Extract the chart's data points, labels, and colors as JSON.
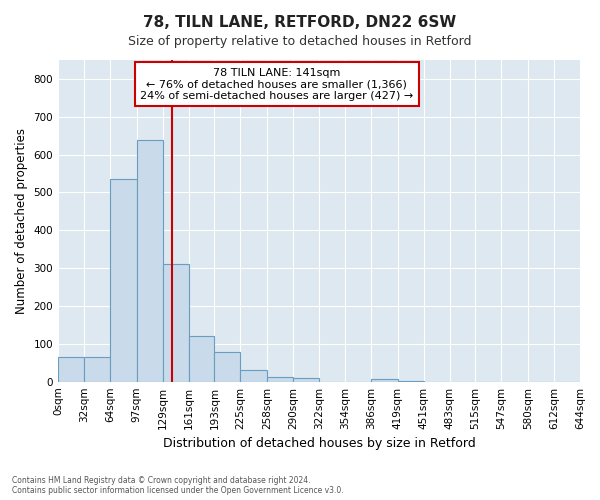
{
  "title1": "78, TILN LANE, RETFORD, DN22 6SW",
  "title2": "Size of property relative to detached houses in Retford",
  "xlabel": "Distribution of detached houses by size in Retford",
  "ylabel": "Number of detached properties",
  "bin_edges": [
    0,
    32,
    64,
    97,
    129,
    161,
    193,
    225,
    258,
    290,
    322,
    354,
    386,
    419,
    451,
    483,
    515,
    547,
    580,
    612,
    644
  ],
  "bar_heights": [
    65,
    65,
    535,
    638,
    312,
    120,
    78,
    30,
    13,
    10,
    0,
    0,
    8,
    3,
    0,
    0,
    0,
    0,
    0,
    0
  ],
  "bar_color": "#c9daea",
  "bar_edge_color": "#6a9ec0",
  "property_sqm": 141,
  "vline_color": "#cc0000",
  "annotation_text": "78 TILN LANE: 141sqm\n← 76% of detached houses are smaller (1,366)\n24% of semi-detached houses are larger (427) →",
  "annotation_box_facecolor": "#ffffff",
  "annotation_box_edgecolor": "#cc0000",
  "ylim": [
    0,
    850
  ],
  "yticks": [
    0,
    100,
    200,
    300,
    400,
    500,
    600,
    700,
    800
  ],
  "fig_facecolor": "#ffffff",
  "ax_facecolor": "#dde8f0",
  "grid_color": "#ffffff",
  "footer1": "Contains HM Land Registry data © Crown copyright and database right 2024.",
  "footer2": "Contains public sector information licensed under the Open Government Licence v3.0."
}
